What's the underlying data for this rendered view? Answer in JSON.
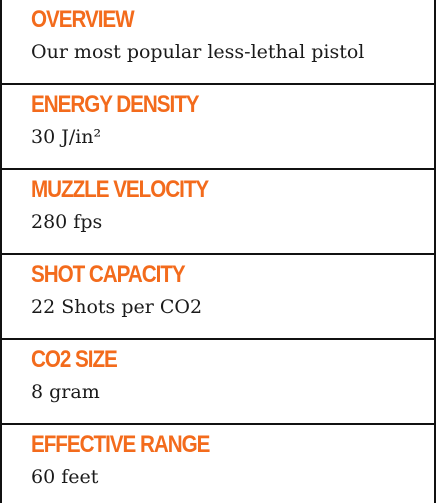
{
  "accent_color": "#f36b1c",
  "specs": [
    {
      "label": "OVERVIEW",
      "value": "Our most popular less-lethal pistol"
    },
    {
      "label": "ENERGY DENSITY",
      "value": "30 J/in²"
    },
    {
      "label": "MUZZLE VELOCITY",
      "value": "280 fps"
    },
    {
      "label": "SHOT CAPACITY",
      "value": "22 Shots per CO2"
    },
    {
      "label": "CO2 SIZE",
      "value": "8 gram"
    },
    {
      "label": "EFFECTIVE RANGE",
      "value": "60 feet"
    }
  ]
}
